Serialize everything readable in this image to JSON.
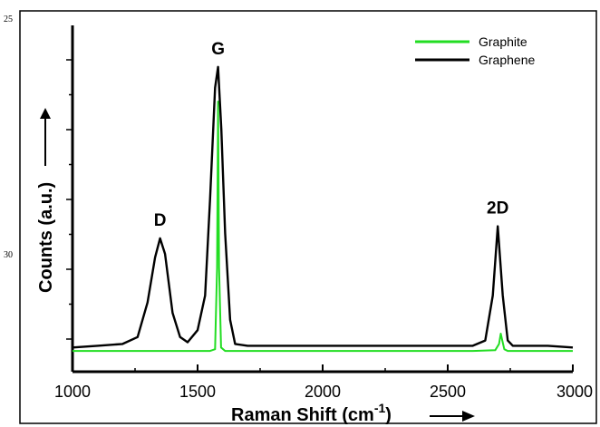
{
  "margin_numbers": {
    "top": "25",
    "middle": "30"
  },
  "chart_data": {
    "type": "line",
    "title": "",
    "xlabel": "Raman Shift (cm",
    "xlabel_sup": "-1",
    "xlabel_close": ")",
    "ylabel": "Counts (a.u.)",
    "xlim": [
      1000,
      3000
    ],
    "ylim": [
      0,
      1
    ],
    "x_ticks": [
      1000,
      1500,
      2000,
      2500,
      3000
    ],
    "x_tick_labels": [
      "1000",
      "1500",
      "2000",
      "2500",
      "3000"
    ],
    "y_tick_labels_shown": false,
    "grid": false,
    "legend": {
      "position": "top-right",
      "entries": [
        "Graphite",
        "Graphene"
      ]
    },
    "colors": {
      "Graphite": "#22dd22",
      "Graphene": "#000000"
    },
    "annotations": [
      {
        "text": "D",
        "x": 1350
      },
      {
        "text": "G",
        "x": 1582
      },
      {
        "text": "2D",
        "x": 2700
      }
    ],
    "series": [
      {
        "name": "Graphite",
        "x": [
          1000,
          1100,
          1200,
          1300,
          1400,
          1500,
          1550,
          1570,
          1578,
          1582,
          1586,
          1594,
          1610,
          1700,
          1800,
          2000,
          2200,
          2400,
          2600,
          2690,
          2705,
          2712,
          2718,
          2726,
          2740,
          2800,
          2900,
          3000
        ],
        "y": [
          0.06,
          0.06,
          0.06,
          0.06,
          0.06,
          0.06,
          0.06,
          0.065,
          0.3,
          0.78,
          0.3,
          0.07,
          0.06,
          0.06,
          0.06,
          0.06,
          0.06,
          0.06,
          0.06,
          0.062,
          0.08,
          0.11,
          0.09,
          0.065,
          0.06,
          0.06,
          0.06,
          0.06
        ]
      },
      {
        "name": "Graphene",
        "x": [
          1000,
          1100,
          1200,
          1260,
          1300,
          1330,
          1350,
          1370,
          1400,
          1430,
          1460,
          1500,
          1530,
          1550,
          1570,
          1582,
          1595,
          1610,
          1630,
          1650,
          1700,
          1800,
          2000,
          2200,
          2400,
          2600,
          2650,
          2680,
          2700,
          2720,
          2740,
          2760,
          2800,
          2900,
          3000
        ],
        "y": [
          0.07,
          0.075,
          0.08,
          0.1,
          0.2,
          0.33,
          0.385,
          0.34,
          0.17,
          0.1,
          0.085,
          0.12,
          0.22,
          0.5,
          0.82,
          0.88,
          0.7,
          0.4,
          0.15,
          0.08,
          0.075,
          0.075,
          0.075,
          0.075,
          0.075,
          0.075,
          0.09,
          0.22,
          0.42,
          0.22,
          0.09,
          0.075,
          0.075,
          0.075,
          0.07
        ]
      }
    ]
  }
}
